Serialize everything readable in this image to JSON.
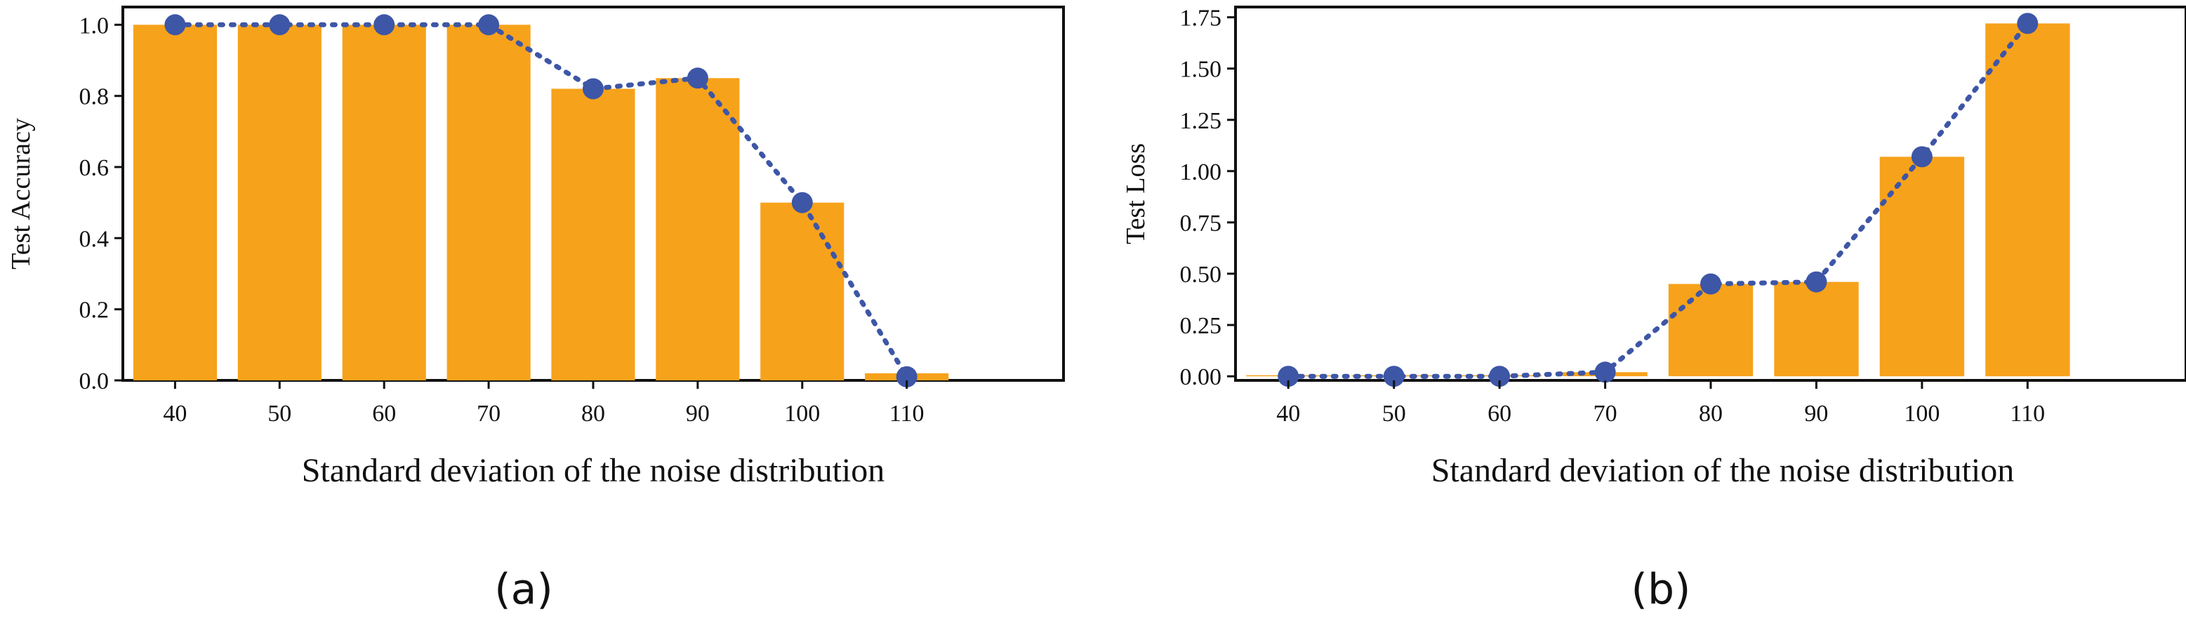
{
  "colors": {
    "bar": "#f7a21b",
    "line": "#3d56a6",
    "axis": "#111111"
  },
  "chart_data": [
    {
      "type": "bar",
      "panel_label": "(a)",
      "title": "",
      "xlabel": "Standard deviation of the noise distribution",
      "ylabel": "Test Accuracy",
      "categories": [
        "40",
        "50",
        "60",
        "70",
        "80",
        "90",
        "100",
        "110"
      ],
      "values": [
        1.0,
        1.0,
        1.0,
        1.0,
        0.82,
        0.85,
        0.5,
        0.02
      ],
      "line_series": {
        "name": "Test Accuracy",
        "values": [
          1.0,
          1.0,
          1.0,
          1.0,
          0.82,
          0.85,
          0.5,
          0.01
        ]
      },
      "ylim": [
        0,
        1.05
      ],
      "yticks": [
        "0.0",
        "0.2",
        "0.4",
        "0.6",
        "0.8",
        "1.0"
      ],
      "grid": false
    },
    {
      "type": "bar",
      "panel_label": "(b)",
      "title": "",
      "xlabel": "Standard deviation of the noise distribution",
      "ylabel": "Test Loss",
      "categories": [
        "40",
        "50",
        "60",
        "70",
        "80",
        "90",
        "100",
        "110"
      ],
      "values": [
        0.005,
        0.005,
        0.005,
        0.02,
        0.45,
        0.46,
        1.07,
        1.72
      ],
      "line_series": {
        "name": "Test Loss",
        "values": [
          0.0,
          0.0,
          0.0,
          0.02,
          0.45,
          0.46,
          1.07,
          1.72
        ]
      },
      "ylim": [
        -0.02,
        1.8
      ],
      "yticks": [
        "0.00",
        "0.25",
        "0.50",
        "0.75",
        "1.00",
        "1.25",
        "1.50",
        "1.75"
      ],
      "grid": false
    }
  ]
}
